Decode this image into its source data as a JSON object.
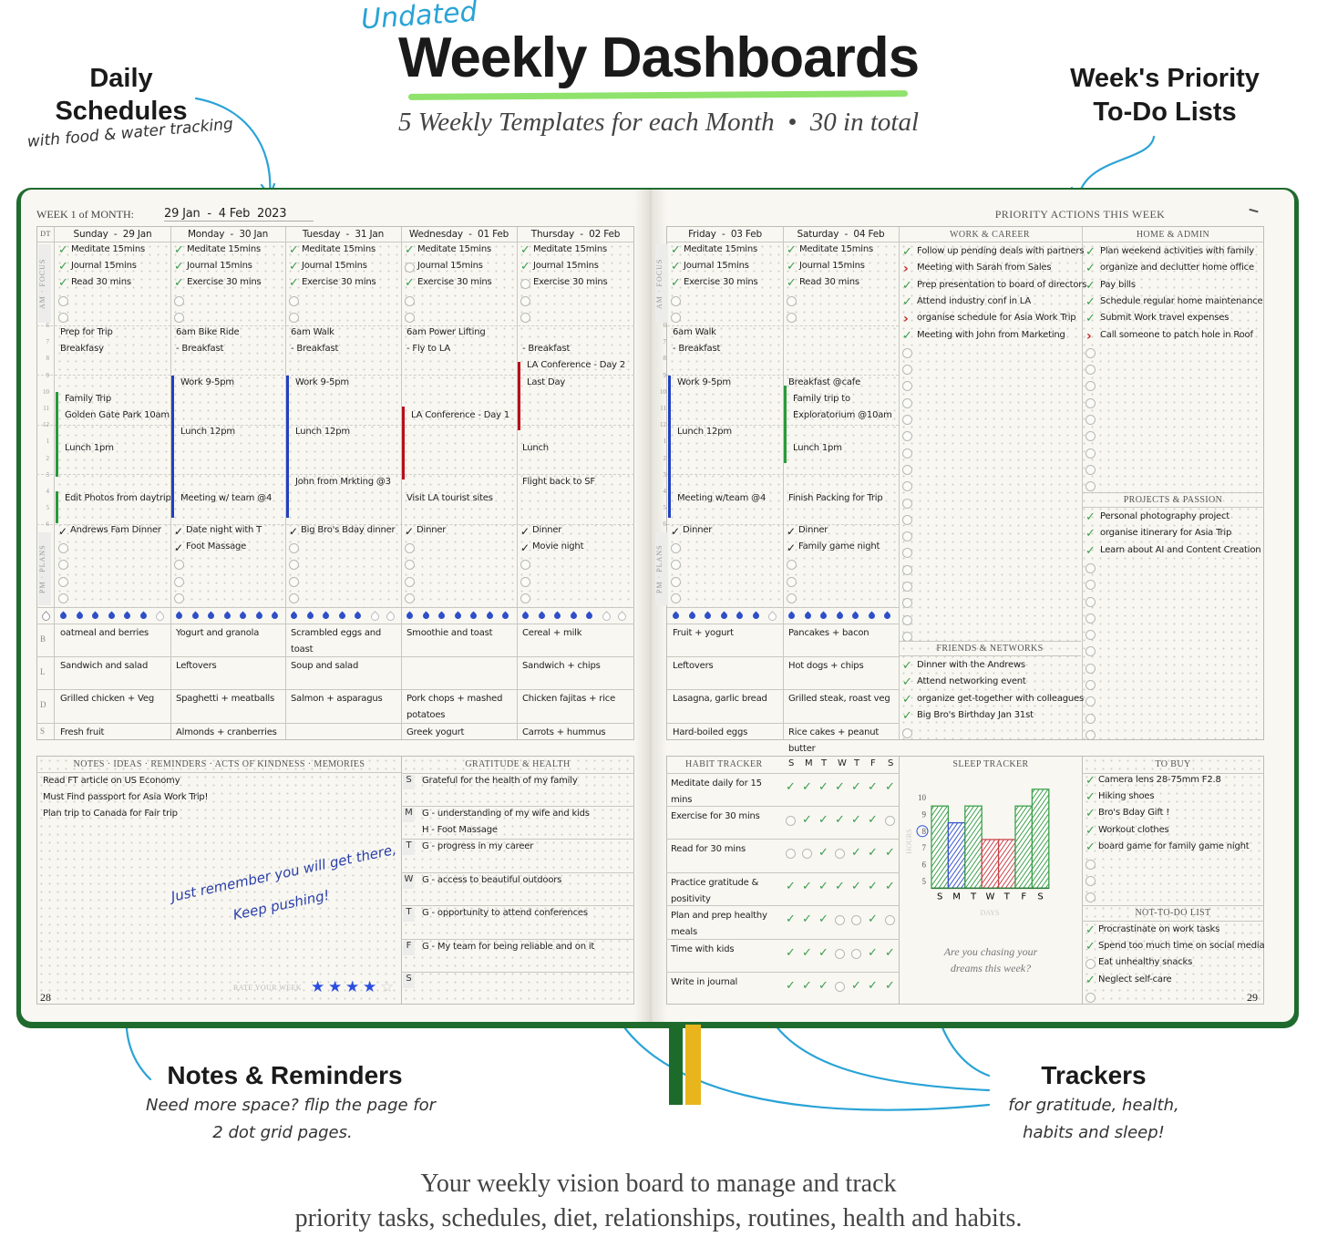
{
  "header": {
    "undated": "Undated",
    "title": "Weekly Dashboards",
    "subtitle": "5 Weekly Templates for each Month  •  30 in total"
  },
  "callouts": {
    "daily": {
      "title_1": "Daily",
      "title_2": "Schedules",
      "sub": "with food & water tracking"
    },
    "priority": {
      "title_1": "Week's Priority",
      "title_2": "To-Do Lists"
    },
    "notes": {
      "title": "Notes & Reminders",
      "sub_1": "Need more space? flip the page for",
      "sub_2": "2 dot grid pages."
    },
    "trackers": {
      "title": "Trackers",
      "sub_1": "for gratitude, health,",
      "sub_2": "habits and sleep!"
    }
  },
  "footer": {
    "line_1": "Your weekly vision board to manage and track",
    "line_2": "priority tasks, schedules, diet, relationships, routines, health and habits."
  },
  "colors": {
    "accent_blue": "#29a3d6",
    "check_green": "#3b9d4c",
    "cover_green": "#1f6b2e",
    "event_blue": "#2340c0",
    "event_green": "#2a9a3a",
    "event_red": "#b3121c",
    "ribbon_yellow": "#e8b51c"
  },
  "planner": {
    "week_label": "WEEK 1 of MONTH:",
    "week_value": "29 Jan  -  4 Feb  2023",
    "dt_label": "DT",
    "am_label": "AM · FOCUS",
    "pm_label": "PM · PLANS",
    "hour_labels": [
      "6",
      "7",
      "8",
      "9",
      "10",
      "11",
      "12",
      "1",
      "2",
      "3",
      "4",
      "5",
      "6"
    ],
    "meal_labels": [
      "B",
      "L",
      "D",
      "S"
    ],
    "left_page_number": "28",
    "right_page_number": "29",
    "days": [
      {
        "header": "Sunday  -  29 Jan",
        "am": [
          {
            "text": "Meditate 15mins",
            "done": true
          },
          {
            "text": "Journal 15mins",
            "done": true
          },
          {
            "text": "Read 30 mins",
            "done": true
          }
        ],
        "events": [
          {
            "hour": 6,
            "text": "Prep for Trip"
          },
          {
            "hour": 7,
            "text": "Breakfasy"
          },
          {
            "hour": 10,
            "text": "Family Trip"
          },
          {
            "hour": 11,
            "text": "Golden Gate Park 10am"
          },
          {
            "hour": 13,
            "text": "Lunch 1pm"
          },
          {
            "hour": 16,
            "text": "Edit Photos from daytrip"
          }
        ],
        "bars": [
          {
            "from": 10,
            "to": 15.1,
            "color": "green"
          },
          {
            "from": 16,
            "to": 17.9,
            "color": "green"
          }
        ],
        "pm": [
          {
            "text": "Andrews Fam Dinner",
            "done": true
          }
        ],
        "water_glasses": 6,
        "meals": {
          "B": "oatmeal and berries",
          "L": "Sandwich and salad",
          "D": "Grilled chicken + Veg",
          "S": "Fresh fruit"
        }
      },
      {
        "header": "Monday  -  30 Jan",
        "am": [
          {
            "text": "Meditate 15mins",
            "done": true
          },
          {
            "text": "Journal 15mins",
            "done": true
          },
          {
            "text": "Exercise 30 mins",
            "done": true
          }
        ],
        "events": [
          {
            "hour": 6,
            "text": "6am Bike Ride"
          },
          {
            "hour": 7,
            "text": "- Breakfast"
          },
          {
            "hour": 9,
            "text": "Work 9-5pm"
          },
          {
            "hour": 12,
            "text": "Lunch 12pm"
          },
          {
            "hour": 16,
            "text": "Meeting w/ team @4"
          }
        ],
        "bars": [
          {
            "from": 9,
            "to": 17.6,
            "color": "blue"
          }
        ],
        "pm": [
          {
            "text": "Date night with T",
            "done": true
          },
          {
            "text": "Foot Massage",
            "done": true
          }
        ],
        "water_glasses": 7,
        "meals": {
          "B": "Yogurt and granola",
          "L": "Leftovers",
          "D": "Spaghetti + meatballs",
          "S": "Almonds + cranberries"
        }
      },
      {
        "header": "Tuesday  -  31 Jan",
        "am": [
          {
            "text": "Meditate 15mins",
            "done": true
          },
          {
            "text": "Journal 15mins",
            "done": true
          },
          {
            "text": "Exercise 30 mins",
            "done": true
          }
        ],
        "events": [
          {
            "hour": 6,
            "text": "6am Walk"
          },
          {
            "hour": 7,
            "text": "- Breakfast"
          },
          {
            "hour": 9,
            "text": "Work 9-5pm"
          },
          {
            "hour": 12,
            "text": "Lunch 12pm"
          },
          {
            "hour": 15,
            "text": "John from Mrkting @3"
          }
        ],
        "bars": [
          {
            "from": 9,
            "to": 17.6,
            "color": "blue"
          }
        ],
        "pm": [
          {
            "text": "Big Bro's Bday dinner",
            "done": true
          }
        ],
        "water_glasses": 5,
        "meals": {
          "B": "Scrambled eggs and toast",
          "L": "Soup and salad",
          "D": "Salmon + asparagus",
          "S": ""
        }
      },
      {
        "header": "Wednesday  -  01 Feb",
        "am": [
          {
            "text": "Meditate 15mins",
            "done": true
          },
          {
            "text": "Journal 15mins",
            "done": false
          },
          {
            "text": "Exercise 30 mins",
            "done": true
          }
        ],
        "events": [
          {
            "hour": 6,
            "text": "6am Power Lifting"
          },
          {
            "hour": 7,
            "text": "- Fly to LA"
          },
          {
            "hour": 11,
            "text": "LA Conference - Day 1"
          },
          {
            "hour": 16,
            "text": "Visit LA tourist sites"
          }
        ],
        "bars": [
          {
            "from": 10.9,
            "to": 15.3,
            "color": "red"
          }
        ],
        "pm": [
          {
            "text": "Dinner",
            "done": true
          }
        ],
        "water_glasses": 7,
        "meals": {
          "B": "Smoothie and toast",
          "L": "",
          "D": "Pork chops + mashed potatoes",
          "S": "Greek yogurt"
        }
      },
      {
        "header": "Thursday  -  02 Feb",
        "am": [
          {
            "text": "Meditate 15mins",
            "done": true
          },
          {
            "text": "Journal 15mins",
            "done": true
          },
          {
            "text": "Exercise 30 mins",
            "done": false
          }
        ],
        "events": [
          {
            "hour": 7,
            "text": "- Breakfast"
          },
          {
            "hour": 8,
            "text": "LA Conference - Day 2"
          },
          {
            "hour": 9,
            "text": "Last Day"
          },
          {
            "hour": 13,
            "text": "Lunch"
          },
          {
            "hour": 15,
            "text": "Flight back to SF"
          }
        ],
        "bars": [
          {
            "from": 8.2,
            "to": 12.3,
            "color": "red"
          }
        ],
        "pm": [
          {
            "text": "Dinner",
            "done": true
          },
          {
            "text": "Movie night",
            "done": true
          }
        ],
        "water_glasses": 5,
        "meals": {
          "B": "Cereal + milk",
          "L": "Sandwich + chips",
          "D": "Chicken fajitas + rice",
          "S": "Carrots + hummus"
        }
      },
      {
        "header": "Friday  -  03 Feb",
        "am": [
          {
            "text": "Meditate 15mins",
            "done": true
          },
          {
            "text": "Journal 15mins",
            "done": true
          },
          {
            "text": "Exercise 30 mins",
            "done": true
          }
        ],
        "events": [
          {
            "hour": 6,
            "text": "6am Walk"
          },
          {
            "hour": 7,
            "text": "- Breakfast"
          },
          {
            "hour": 9,
            "text": "Work 9-5pm"
          },
          {
            "hour": 12,
            "text": "Lunch 12pm"
          },
          {
            "hour": 16,
            "text": "Meeting w/team @4"
          }
        ],
        "bars": [
          {
            "from": 9,
            "to": 17.6,
            "color": "blue"
          }
        ],
        "pm": [
          {
            "text": "Dinner",
            "done": true
          }
        ],
        "water_glasses": 6,
        "meals": {
          "B": "Fruit + yogurt",
          "L": "Leftovers",
          "D": "Lasagna, garlic bread",
          "S": "Hard-boiled eggs"
        }
      },
      {
        "header": "Saturday  -  04 Feb",
        "am": [
          {
            "text": "Meditate 15mins",
            "done": true
          },
          {
            "text": "Journal 15mins",
            "done": true
          },
          {
            "text": "Read 30 mins",
            "done": true
          }
        ],
        "events": [
          {
            "hour": 9,
            "text": "Breakfast @cafe"
          },
          {
            "hour": 10,
            "text": "Family trip to"
          },
          {
            "hour": 11,
            "text": "Exploratorium @10am"
          },
          {
            "hour": 13,
            "text": "Lunch 1pm"
          },
          {
            "hour": 16,
            "text": "Finish Packing for Trip"
          }
        ],
        "bars": [
          {
            "from": 9.6,
            "to": 14.3,
            "color": "green"
          }
        ],
        "pm": [
          {
            "text": "Dinner",
            "done": true
          },
          {
            "text": "Family game night",
            "done": true
          }
        ],
        "water_glasses": 7,
        "meals": {
          "B": "Pancakes + bacon",
          "L": "Hot dogs + chips",
          "D": "Grilled steak, roast veg",
          "S": "Rice cakes + peanut butter"
        }
      }
    ]
  },
  "priority": {
    "title": "PRIORITY ACTIONS THIS WEEK",
    "work": {
      "title": "WORK & CAREER",
      "items": [
        {
          "text": "Follow up pending deals with partners",
          "status": "done"
        },
        {
          "text": "Meeting with Sarah from Sales",
          "status": "migrated"
        },
        {
          "text": "Prep presentation to board of directors",
          "status": "done"
        },
        {
          "text": "Attend industry conf in LA",
          "status": "done"
        },
        {
          "text": "organise schedule for Asia Work Trip",
          "status": "migrated"
        },
        {
          "text": "Meeting with John from Marketing",
          "status": "done"
        }
      ]
    },
    "friends": {
      "title": "FRIENDS & NETWORKS",
      "items": [
        {
          "text": "Dinner with the Andrews",
          "status": "done"
        },
        {
          "text": "Attend networking event",
          "status": "done"
        },
        {
          "text": "organize get-together with colleagues",
          "status": "done"
        },
        {
          "text": "Big Bro's Birthday Jan 31st",
          "status": "done"
        }
      ]
    },
    "home": {
      "title": "HOME & ADMIN",
      "items": [
        {
          "text": "Plan weekend activities with family",
          "status": "done"
        },
        {
          "text": "organize and declutter home office",
          "status": "done"
        },
        {
          "text": "Pay bills",
          "status": "done"
        },
        {
          "text": "Schedule regular home maintenance",
          "status": "done"
        },
        {
          "text": "Submit Work travel expenses",
          "status": "done"
        },
        {
          "text": "Call someone to patch hole in Roof",
          "status": "migrated"
        }
      ]
    },
    "projects": {
      "title": "PROJECTS & PASSION",
      "items": [
        {
          "text": "Personal photography project",
          "status": "done"
        },
        {
          "text": "organise itinerary for Asia Trip",
          "status": "done"
        },
        {
          "text": "Learn about AI and Content Creation",
          "status": "done"
        }
      ]
    }
  },
  "notes": {
    "title": "NOTES · IDEAS · REMINDERS · ACTS OF KINDNESS · MEMORIES",
    "items": [
      "Read FT article on US Economy",
      "Must Find passport for Asia Work Trip!",
      "Plan trip to Canada for Fair trip"
    ],
    "quote_1": "Just remember you will get there,",
    "quote_2": "Keep pushing!",
    "rate_label": "RATE YOUR WEEK",
    "rating": 4,
    "rating_max": 5
  },
  "gratitude": {
    "title": "GRATITUDE & HEALTH",
    "rows": [
      {
        "day": "S",
        "lines": [
          "Grateful for the health of my family"
        ]
      },
      {
        "day": "M",
        "lines": [
          "G - understanding of my wife and kids",
          "H - Foot Massage"
        ]
      },
      {
        "day": "T",
        "lines": [
          "G - progress in my career"
        ]
      },
      {
        "day": "W",
        "lines": [
          "G - access to beautiful outdoors"
        ]
      },
      {
        "day": "T",
        "lines": [
          "G - opportunity to attend conferences"
        ]
      },
      {
        "day": "F",
        "lines": [
          "G - My team for being reliable and on it"
        ]
      },
      {
        "day": "S",
        "lines": []
      }
    ]
  },
  "habits": {
    "title": "HABIT TRACKER",
    "days": [
      "S",
      "M",
      "T",
      "W",
      "T",
      "F",
      "S"
    ],
    "rows": [
      {
        "name": "Meditate daily for 15 mins",
        "done": [
          1,
          1,
          1,
          1,
          1,
          1,
          1
        ]
      },
      {
        "name": "Exercise for 30 mins",
        "done": [
          0,
          1,
          1,
          1,
          1,
          1,
          0
        ]
      },
      {
        "name": "Read for 30 mins",
        "done": [
          0,
          0,
          1,
          0,
          1,
          1,
          1
        ]
      },
      {
        "name": "Practice gratitude & positivity",
        "done": [
          1,
          1,
          1,
          1,
          1,
          1,
          1
        ]
      },
      {
        "name": "Plan and prep healthy meals",
        "done": [
          1,
          1,
          1,
          0,
          0,
          1,
          0
        ]
      },
      {
        "name": "Time with kids",
        "done": [
          1,
          1,
          1,
          0,
          0,
          1,
          1
        ]
      },
      {
        "name": "Write in journal",
        "done": [
          1,
          1,
          1,
          0,
          1,
          1,
          1
        ]
      }
    ]
  },
  "sleep": {
    "title": "SLEEP TRACKER",
    "quote_1": "Are you chasing your",
    "quote_2": "dreams this week?"
  },
  "chart_data": {
    "type": "bar",
    "title": "SLEEP TRACKER",
    "categories": [
      "S",
      "M",
      "T",
      "W",
      "T",
      "F",
      "S"
    ],
    "values": [
      9.5,
      8.5,
      9.5,
      7.5,
      7.5,
      9.5,
      10.5
    ],
    "bar_colors": [
      "#3ea04b",
      "#3b55c9",
      "#3ea04b",
      "#c9444a",
      "#c9444a",
      "#3ea04b",
      "#3ea04b"
    ],
    "xlabel": "DAYS",
    "ylabel": "HOURS",
    "y_ticks": [
      "5",
      "6",
      "7",
      "8",
      "9",
      "10"
    ],
    "target": 8,
    "ylim": [
      4.6,
      11
    ],
    "grid": false
  },
  "to_buy": {
    "title": "TO BUY",
    "items": [
      {
        "text": "Camera lens 28-75mm F2.8",
        "status": "done"
      },
      {
        "text": "Hiking shoes",
        "status": "done"
      },
      {
        "text": "Bro's Bday Gift !",
        "status": "done"
      },
      {
        "text": "Workout clothes",
        "status": "done"
      },
      {
        "text": "board game for family game night",
        "status": "done"
      }
    ]
  },
  "not_to_do": {
    "title": "NOT-TO-DO LIST",
    "items": [
      {
        "text": "Procrastinate on work tasks",
        "status": "done"
      },
      {
        "text": "Spend too much time on social media",
        "status": "done"
      },
      {
        "text": "Eat unhealthy snacks",
        "status": "open"
      },
      {
        "text": "Neglect self-care",
        "status": "done"
      }
    ]
  }
}
